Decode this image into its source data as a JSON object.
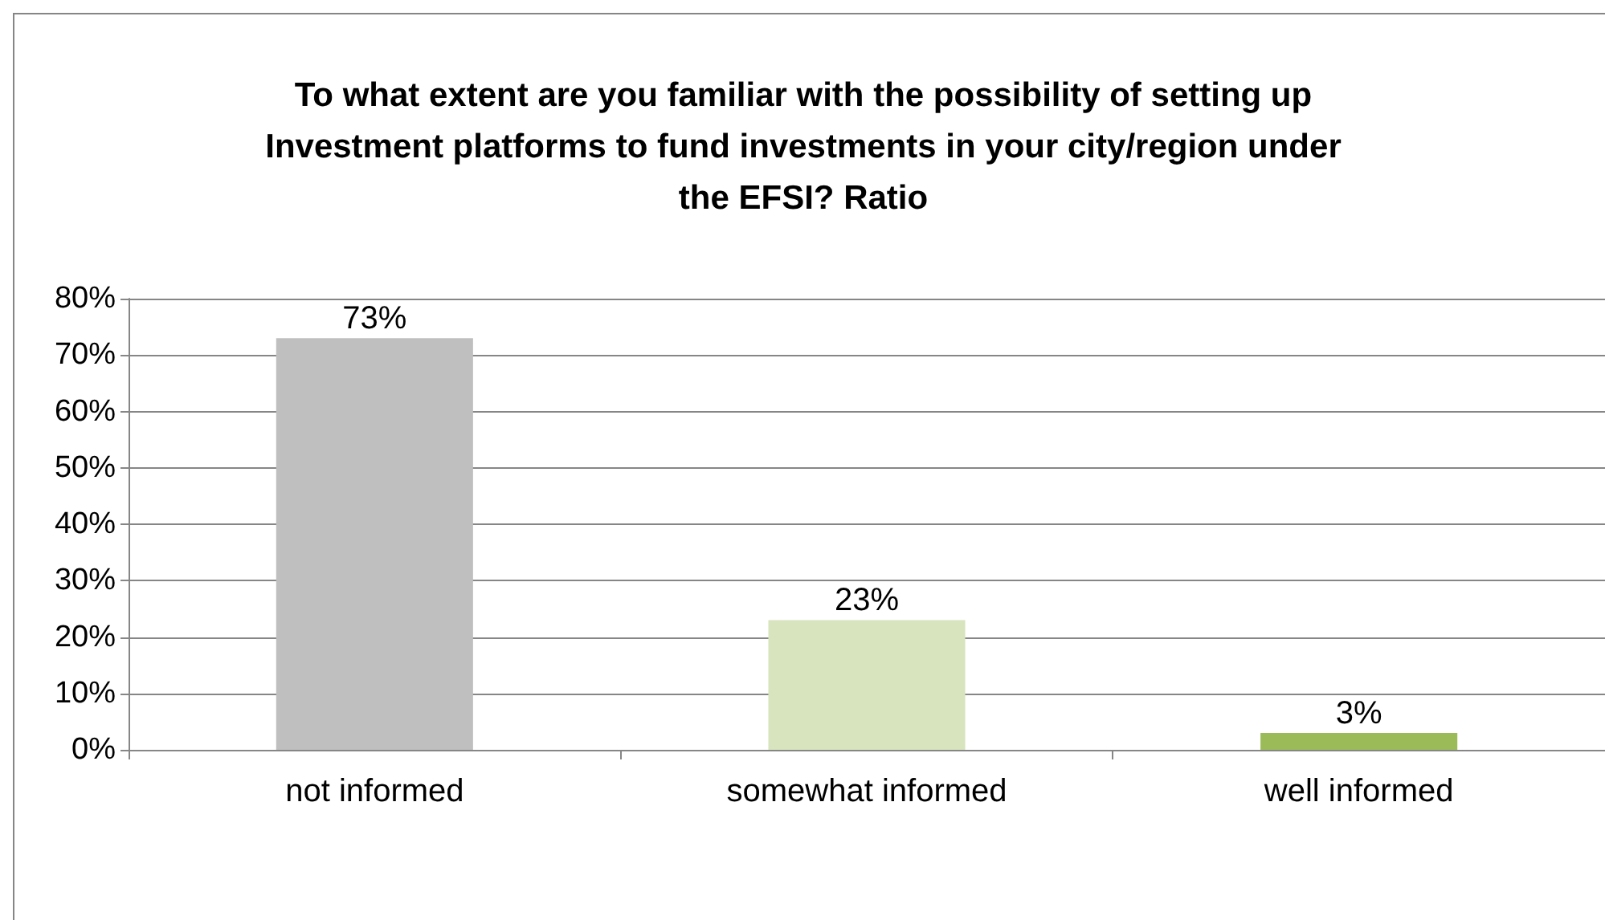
{
  "chart_data": {
    "type": "bar",
    "title": "To what extent are you familiar with the possibility of setting up Investment platforms to fund investments in your city/region under the EFSI? Ratio",
    "categories": [
      "not informed",
      "somewhat informed",
      "well informed"
    ],
    "values": [
      73,
      23,
      3
    ],
    "colors": [
      "#bfbfbf",
      "#d7e4bd",
      "#9bbb59"
    ],
    "value_labels": [
      "73%",
      "23%",
      "3%"
    ],
    "ylim": [
      0,
      80
    ],
    "yticks": [
      {
        "value": 0,
        "label": "0%"
      },
      {
        "value": 10,
        "label": "10%"
      },
      {
        "value": 20,
        "label": "20%"
      },
      {
        "value": 30,
        "label": "30%"
      },
      {
        "value": 40,
        "label": "40%"
      },
      {
        "value": 50,
        "label": "50%"
      },
      {
        "value": 60,
        "label": "60%"
      },
      {
        "value": 70,
        "label": "70%"
      },
      {
        "value": 80,
        "label": "80%"
      }
    ],
    "grid": "y"
  }
}
